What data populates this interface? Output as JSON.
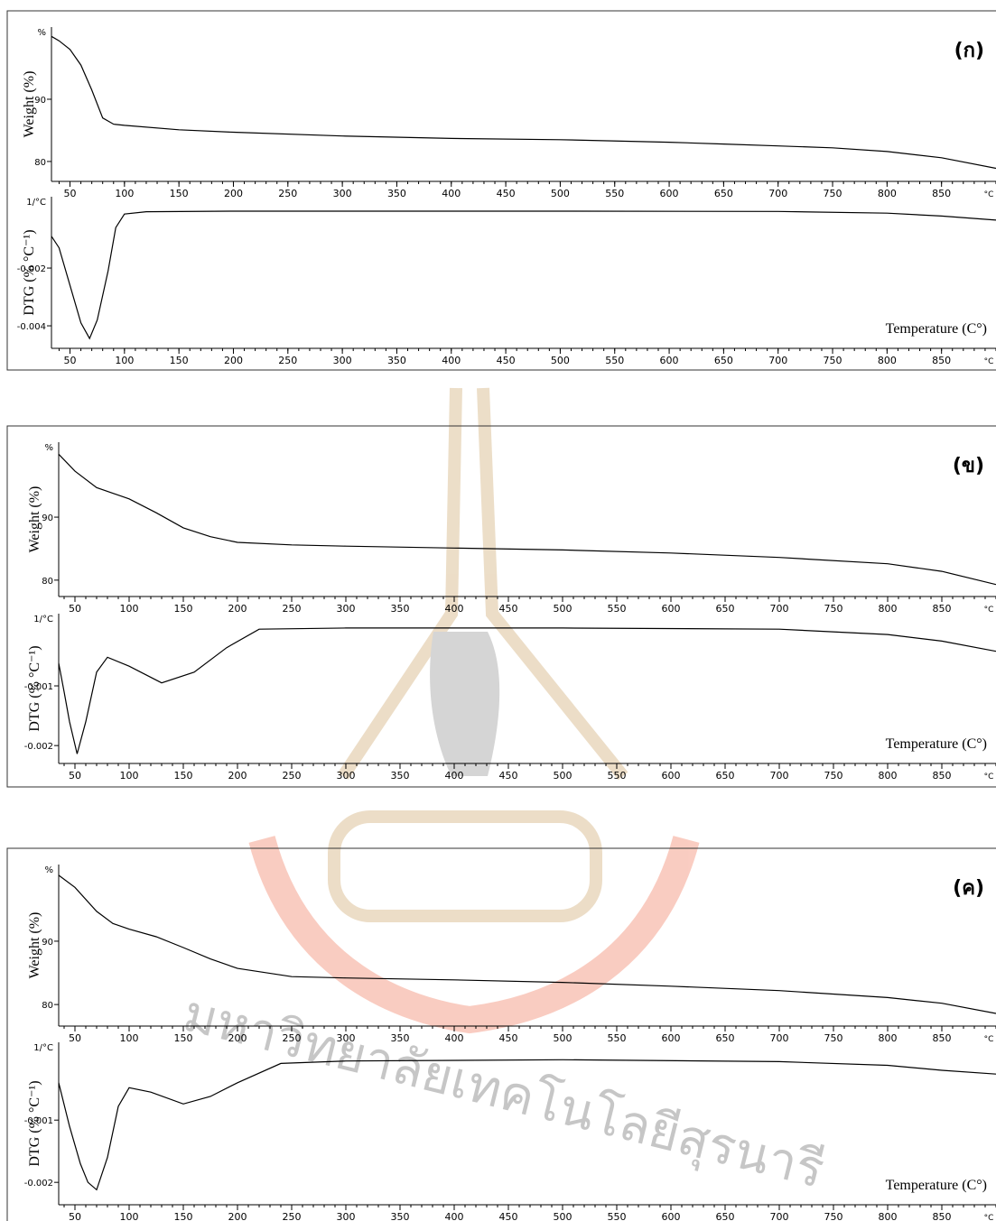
{
  "chart_data": [
    {
      "type": "line",
      "ylabel": "Weight (%)",
      "y_unit": "%",
      "x_unit": "°C",
      "panel_label": "(ก)",
      "color": "#000000",
      "x": [
        33,
        40,
        50,
        60,
        70,
        80,
        90,
        100,
        150,
        200,
        300,
        400,
        500,
        600,
        650,
        700,
        750,
        800,
        850,
        900
      ],
      "values": [
        100.1,
        99.4,
        98,
        95.5,
        91.5,
        87,
        86,
        85.8,
        85.1,
        84.7,
        84.1,
        83.7,
        83.5,
        83.1,
        82.8,
        82.5,
        82.2,
        81.6,
        80.6,
        78.9
      ],
      "xlim": [
        33,
        900
      ],
      "xticks": [
        50,
        100,
        150,
        200,
        250,
        300,
        350,
        400,
        450,
        500,
        550,
        600,
        650,
        700,
        750,
        800,
        850
      ],
      "ylim": [
        76.8,
        101.6
      ],
      "yticks": [
        80,
        90
      ]
    },
    {
      "type": "line",
      "ylabel": "DTG (% °C⁻¹)",
      "y_unit": "1/°C",
      "x_unit": "°C",
      "xlabel": "Temperature (C°)",
      "color": "#000000",
      "x": [
        33,
        40,
        50,
        60,
        68,
        75,
        85,
        92,
        100,
        120,
        200,
        300,
        500,
        700,
        800,
        850,
        900
      ],
      "values": [
        -0.0009,
        -0.0013,
        -0.0026,
        -0.0039,
        -0.00444,
        -0.0038,
        -0.0021,
        -0.0006,
        -0.00013,
        -5e-05,
        -3e-05,
        -3e-05,
        -3e-05,
        -4e-05,
        -0.0001,
        -0.0002,
        -0.00034
      ],
      "xlim": [
        33,
        900
      ],
      "xticks": [
        50,
        100,
        150,
        200,
        250,
        300,
        350,
        400,
        450,
        500,
        550,
        600,
        650,
        700,
        750,
        800,
        850
      ],
      "ylim": [
        -0.00478,
        0.00047
      ],
      "yticks": [
        -0.002,
        -0.004
      ]
    },
    {
      "type": "line",
      "ylabel": "Weight (%)",
      "y_unit": "%",
      "x_unit": "°C",
      "panel_label": "(ข)",
      "color": "#000000",
      "x": [
        35,
        50,
        70,
        100,
        125,
        150,
        175,
        200,
        250,
        300,
        400,
        500,
        600,
        700,
        800,
        850,
        900
      ],
      "values": [
        100,
        97.3,
        94.7,
        92.9,
        90.7,
        88.3,
        86.9,
        86,
        85.6,
        85.4,
        85.1,
        84.8,
        84.3,
        83.6,
        82.6,
        81.4,
        79.3
      ],
      "xlim": [
        35,
        900
      ],
      "xticks": [
        50,
        100,
        150,
        200,
        250,
        300,
        350,
        400,
        450,
        500,
        550,
        600,
        650,
        700,
        750,
        800,
        850
      ],
      "ylim": [
        77.4,
        101.9
      ],
      "yticks": [
        80,
        90
      ]
    },
    {
      "type": "line",
      "ylabel": "DTG (% °C⁻¹)",
      "y_unit": "1/°C",
      "x_unit": "°C",
      "xlabel": "Temperature (C°)",
      "color": "#000000",
      "x": [
        35,
        40,
        45,
        52,
        60,
        70,
        80,
        100,
        130,
        160,
        190,
        220,
        300,
        500,
        700,
        800,
        850,
        900
      ],
      "values": [
        -0.00062,
        -0.0011,
        -0.0016,
        -0.00214,
        -0.0016,
        -0.00077,
        -0.00052,
        -0.00067,
        -0.00095,
        -0.00077,
        -0.00036,
        -5e-05,
        -3e-05,
        -3e-05,
        -5e-05,
        -0.00014,
        -0.00025,
        -0.00042
      ],
      "xlim": [
        35,
        900
      ],
      "xticks": [
        50,
        100,
        150,
        200,
        250,
        300,
        350,
        400,
        450,
        500,
        550,
        600,
        650,
        700,
        750,
        800,
        850
      ],
      "ylim": [
        -0.0023,
        0.00021
      ],
      "yticks": [
        -0.001,
        -0.002
      ]
    },
    {
      "type": "line",
      "ylabel": "Weight (%)",
      "y_unit": "%",
      "x_unit": "°C",
      "panel_label": "(ค)",
      "color": "#000000",
      "x": [
        35,
        50,
        70,
        85,
        100,
        125,
        150,
        175,
        200,
        250,
        300,
        400,
        500,
        600,
        700,
        800,
        850,
        900
      ],
      "values": [
        100.4,
        98.5,
        94.7,
        92.8,
        91.9,
        90.7,
        89,
        87.2,
        85.7,
        84.4,
        84.2,
        83.9,
        83.5,
        82.9,
        82.2,
        81.1,
        80.2,
        78.6
      ],
      "xlim": [
        35,
        900
      ],
      "xticks": [
        50,
        100,
        150,
        200,
        250,
        300,
        350,
        400,
        450,
        500,
        550,
        600,
        650,
        700,
        750,
        800,
        850
      ],
      "ylim": [
        76.6,
        102.1
      ],
      "yticks": [
        80,
        90
      ]
    },
    {
      "type": "line",
      "ylabel": "DTG (% °C⁻¹)",
      "y_unit": "1/°C",
      "x_unit": "°C",
      "xlabel": "Temperature (C°)",
      "color": "#000000",
      "x": [
        35,
        45,
        55,
        62,
        70,
        80,
        90,
        100,
        120,
        150,
        175,
        200,
        240,
        300,
        500,
        700,
        800,
        850,
        900
      ],
      "values": [
        -0.0004,
        -0.0011,
        -0.0017,
        -0.002,
        -0.00212,
        -0.0016,
        -0.00078,
        -0.00048,
        -0.00055,
        -0.00074,
        -0.00062,
        -0.0004,
        -9e-05,
        -5e-05,
        -3e-05,
        -6e-05,
        -0.00012,
        -0.0002,
        -0.00026
      ],
      "xlim": [
        35,
        900
      ],
      "xticks": [
        50,
        100,
        150,
        200,
        250,
        300,
        350,
        400,
        450,
        500,
        550,
        600,
        650,
        700,
        750,
        800,
        850
      ],
      "ylim": [
        -0.00236,
        0.00025
      ],
      "yticks": [
        -0.001,
        -0.002
      ]
    }
  ],
  "watermark": "มหาวิทยาลัยเทคโนโลยีสุรนารี"
}
